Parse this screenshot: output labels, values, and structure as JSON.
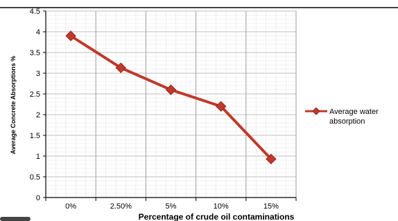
{
  "chart_data": {
    "type": "line",
    "title": "",
    "xlabel": "Percentage of crude oil contaminations",
    "ylabel": "Average Concrete Absorptions  %",
    "categories": [
      "0%",
      "2.50%",
      "5%",
      "10%",
      "15%"
    ],
    "series": [
      {
        "name": "Average water absorption",
        "values": [
          3.9,
          3.13,
          2.6,
          2.2,
          0.93
        ]
      }
    ],
    "ylim": [
      0,
      4.5
    ],
    "yticks": [
      "0",
      "0.5",
      "1",
      "1.5",
      "2",
      "2.5",
      "3",
      "3.5",
      "4",
      "4.5"
    ],
    "grid": true,
    "legend_position": "right",
    "colors": {
      "series": "#c0392b",
      "marker": "#c0392b",
      "grid": "#c8c8c8",
      "frame": "#000000"
    }
  },
  "legend": {
    "line1": "Average water",
    "line2": "absorption"
  }
}
